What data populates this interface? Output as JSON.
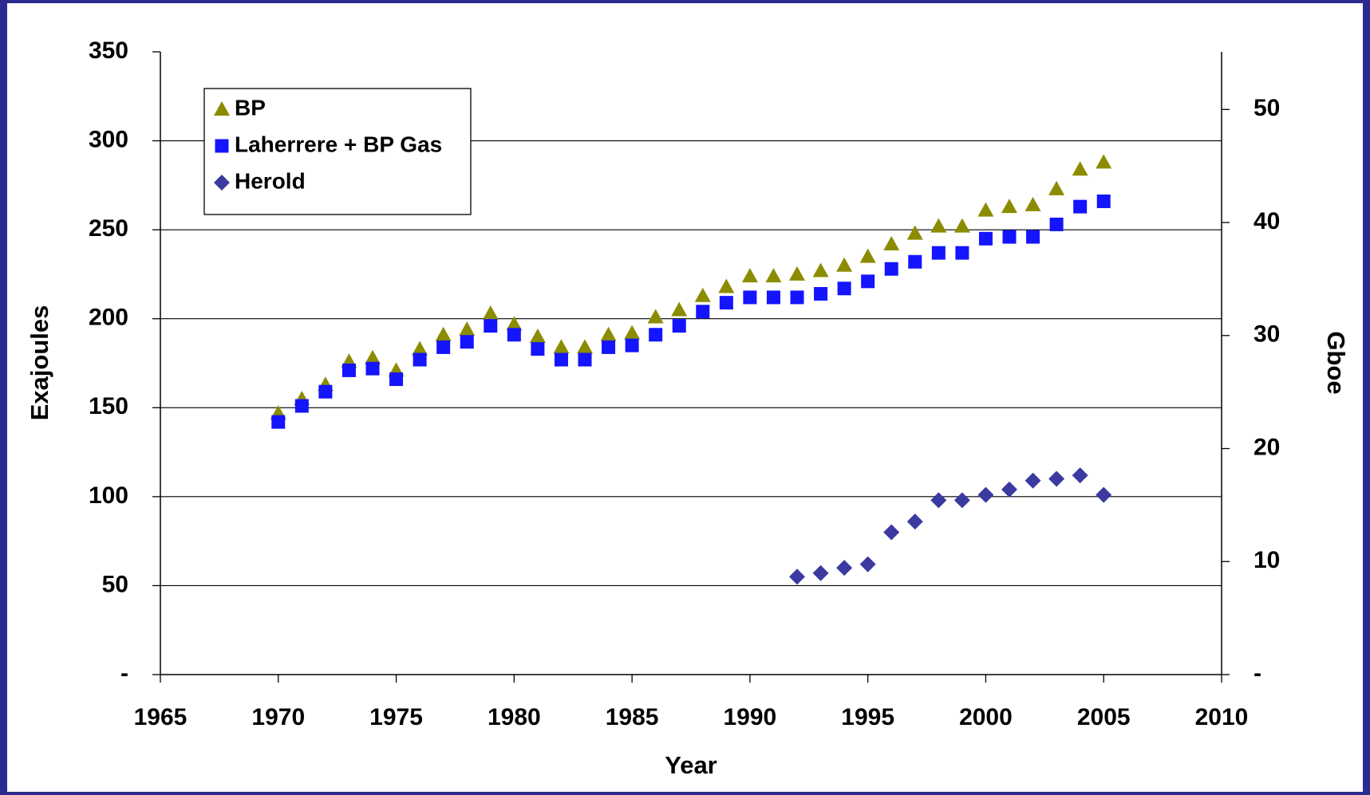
{
  "chart_data": {
    "type": "scatter",
    "x_label": "Year",
    "y_label": "Exajoules",
    "y2_label": "Gboe",
    "x": [
      1970,
      1971,
      1972,
      1973,
      1974,
      1975,
      1976,
      1977,
      1978,
      1979,
      1980,
      1981,
      1982,
      1983,
      1984,
      1985,
      1986,
      1987,
      1988,
      1989,
      1990,
      1991,
      1992,
      1993,
      1994,
      1995,
      1996,
      1997,
      1998,
      1999,
      2000,
      2001,
      2002,
      2003,
      2004,
      2005
    ],
    "series": [
      {
        "name": "BP",
        "color": "#8c8c00",
        "marker": "triangle",
        "values": [
          147,
          155,
          163,
          176,
          178,
          171,
          183,
          191,
          194,
          203,
          197,
          190,
          184,
          184,
          191,
          192,
          201,
          205,
          213,
          218,
          224,
          224,
          225,
          227,
          230,
          235,
          242,
          248,
          252,
          252,
          261,
          263,
          264,
          273,
          284,
          288
        ]
      },
      {
        "name": "Laherrere + BP Gas",
        "color": "#1414ff",
        "marker": "square",
        "values": [
          142,
          151,
          159,
          171,
          172,
          166,
          177,
          184,
          187,
          196,
          191,
          183,
          177,
          177,
          184,
          185,
          191,
          196,
          204,
          209,
          212,
          212,
          212,
          214,
          217,
          221,
          228,
          232,
          237,
          237,
          245,
          246,
          246,
          253,
          263,
          266
        ]
      },
      {
        "name": "Herold",
        "color": "#3a3aa0",
        "marker": "diamond",
        "values": [
          null,
          null,
          null,
          null,
          null,
          null,
          null,
          null,
          null,
          null,
          null,
          null,
          null,
          null,
          null,
          null,
          null,
          null,
          null,
          null,
          null,
          null,
          55,
          57,
          60,
          62,
          80,
          86,
          98,
          98,
          101,
          104,
          109,
          110,
          112,
          101
        ]
      }
    ],
    "xlim": [
      1965,
      2010
    ],
    "xticks": [
      1965,
      1970,
      1975,
      1980,
      1985,
      1990,
      1995,
      2000,
      2005,
      2010
    ],
    "ylim": [
      0,
      350
    ],
    "yticks": [
      {
        "value": 0,
        "label": "-"
      },
      50,
      100,
      150,
      200,
      250,
      300,
      350
    ],
    "y2lim": [
      0,
      55.1
    ],
    "y2ticks": [
      {
        "value": 0,
        "label": "-"
      },
      10,
      20,
      30,
      40,
      50
    ],
    "grid": true,
    "legend": "upper left"
  }
}
